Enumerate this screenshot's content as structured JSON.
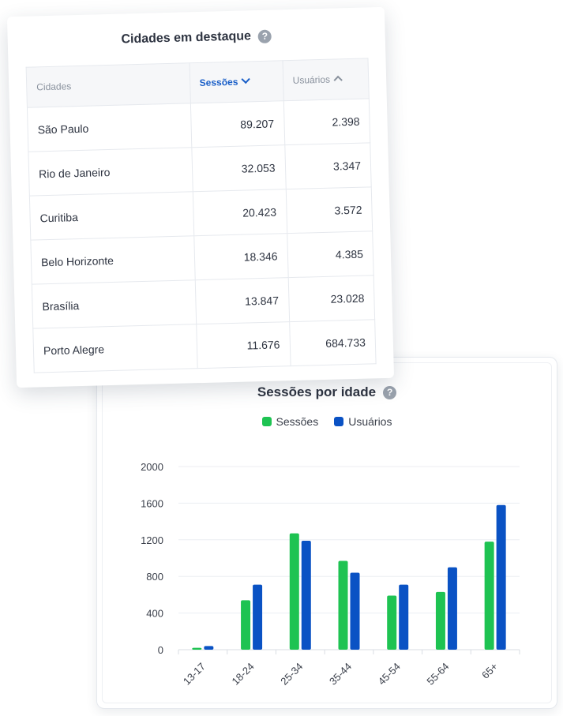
{
  "cities_table": {
    "title": "Cidades em destaque",
    "help_icon": "question-circle-icon",
    "columns": {
      "city": "Cidades",
      "sessions": "Sessões",
      "users": "Usuários"
    },
    "rows": [
      {
        "city": "São Paulo",
        "sessions": "89.207",
        "users": "2.398"
      },
      {
        "city": "Rio de Janeiro",
        "sessions": "32.053",
        "users": "3.347"
      },
      {
        "city": "Curitiba",
        "sessions": "20.423",
        "users": "3.572"
      },
      {
        "city": "Belo Horizonte",
        "sessions": "18.346",
        "users": "4.385"
      },
      {
        "city": "Brasília",
        "sessions": "13.847",
        "users": "23.028"
      },
      {
        "city": "Porto Alegre",
        "sessions": "11.676",
        "users": "684.733"
      }
    ]
  },
  "age_chart": {
    "title": "Sessões por idade",
    "help_icon": "question-circle-icon",
    "colors": {
      "sessions": "#1ec352",
      "users": "#0a52c4"
    }
  },
  "chart_data": {
    "type": "bar",
    "title": "Sessões por idade",
    "categories": [
      "13-17",
      "18-24",
      "25-34",
      "35-44",
      "45-54",
      "55-64",
      "65+"
    ],
    "series": [
      {
        "name": "Sessões",
        "values": [
          20,
          540,
          1270,
          970,
          590,
          630,
          1180
        ]
      },
      {
        "name": "Usuários",
        "values": [
          40,
          710,
          1190,
          840,
          710,
          900,
          1580
        ]
      }
    ],
    "yticks": [
      "2000",
      "1600",
      "1200",
      "800",
      "400",
      "0"
    ],
    "ylim": [
      0,
      2000
    ],
    "legend": "top-center",
    "grid": true
  }
}
